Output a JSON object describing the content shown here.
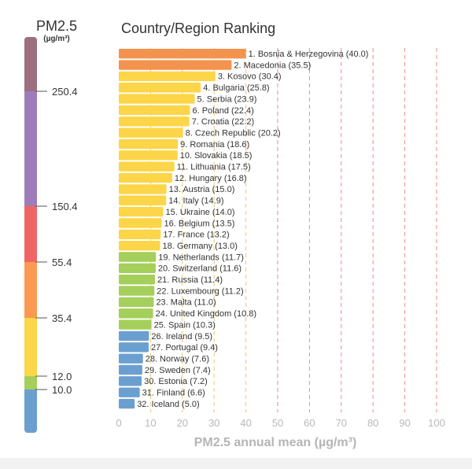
{
  "legend": {
    "title": "PM2.5",
    "unit": "(µg/m³)",
    "bands": [
      {
        "from": 0,
        "to": 10.0,
        "color": "#6b9fd0"
      },
      {
        "from": 10.0,
        "to": 12.0,
        "color": "#a4cf5b"
      },
      {
        "from": 12.0,
        "to": 35.4,
        "color": "#fcd548"
      },
      {
        "from": 35.4,
        "to": 55.4,
        "color": "#fa9a52"
      },
      {
        "from": 55.4,
        "to": 150.4,
        "color": "#ef6565"
      },
      {
        "from": 150.4,
        "to": 250.4,
        "color": "#9e7cba"
      },
      {
        "from": 250.4,
        "to": 500,
        "color": "#9d6f7f"
      }
    ],
    "ticks": [
      "250.4",
      "150.4",
      "55.4",
      "35.4",
      "12.0",
      "10.0"
    ]
  },
  "chart_data": {
    "type": "bar",
    "orientation": "horizontal",
    "title": "Country/Region Ranking",
    "xlabel": "PM2.5 annual mean (µg/m³)",
    "xlim": [
      0,
      100
    ],
    "xticks": [
      0,
      10,
      20,
      30,
      40,
      50,
      60,
      70,
      80,
      90,
      100
    ],
    "categories": [
      "1. Bosnia & Herzegovina (40.0)",
      "2. Macedonia (35.5)",
      "3. Kosovo (30.4)",
      "4. Bulgaria (25.8)",
      "5. Serbia (23.9)",
      "6. Poland (22.4)",
      "7. Croatia (22.2)",
      "8. Czech Republic (20.2)",
      "9. Romania (18.6)",
      "10. Slovakia (18.5)",
      "11. Lithuania (17.5)",
      "12. Hungary (16.8)",
      "13. Austria (15.0)",
      "14. Italy (14.9)",
      "15. Ukraine (14.0)",
      "16. Belgium (13.5)",
      "17. France (13.2)",
      "18. Germany (13.0)",
      "19. Netherlands (11.7)",
      "20. Switzerland (11.6)",
      "21. Russia (11.4)",
      "22. Luxembourg (11.2)",
      "23. Malta (11.0)",
      "24. United Kingdom (10.8)",
      "25. Spain (10.3)",
      "26. Ireland (9.5)",
      "27. Portugal (9.4)",
      "28. Norway (7.6)",
      "29. Sweden (7.4)",
      "30. Estonia (7.2)",
      "31. Finland (6.6)",
      "32. Iceland (5.0)"
    ],
    "values": [
      40.0,
      35.5,
      30.4,
      25.8,
      23.9,
      22.4,
      22.2,
      20.2,
      18.6,
      18.5,
      17.5,
      16.8,
      15.0,
      14.9,
      14.0,
      13.5,
      13.2,
      13.0,
      11.7,
      11.6,
      11.4,
      11.2,
      11.0,
      10.8,
      10.3,
      9.5,
      9.4,
      7.6,
      7.4,
      7.2,
      6.6,
      5.0
    ],
    "grid": true
  }
}
